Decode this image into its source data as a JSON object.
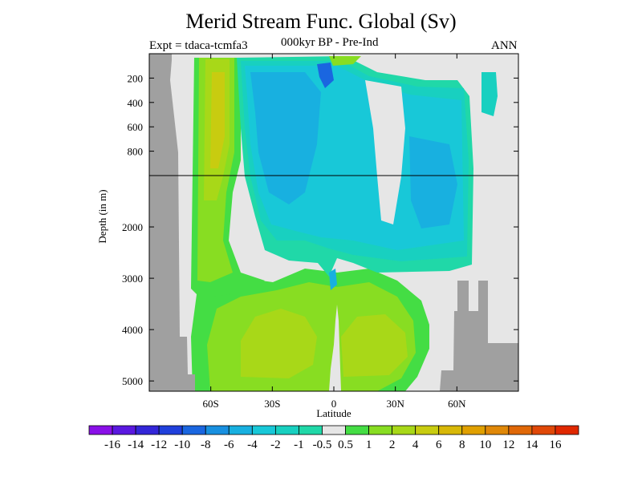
{
  "header": {
    "title": "Merid Stream Func. Global (Sv)",
    "left": "Expt = tdaca-tcmfa3",
    "center": "000kyr BP - Pre-Ind",
    "right": "ANN"
  },
  "chart_data": {
    "type": "heatmap",
    "title": "Merid Stream Func. Global (Sv)",
    "xlabel": "Latitude",
    "ylabel": "Depth (in m)",
    "xlim": [
      -90,
      90
    ],
    "x_ticks": [
      {
        "value": -60,
        "label": "60S"
      },
      {
        "value": -30,
        "label": "30S"
      },
      {
        "value": 0,
        "label": "0"
      },
      {
        "value": 30,
        "label": "30N"
      },
      {
        "value": 60,
        "label": "60N"
      }
    ],
    "y_ticks_upper": [
      {
        "value": 200,
        "label": "200"
      },
      {
        "value": 400,
        "label": "400"
      },
      {
        "value": 600,
        "label": "600"
      },
      {
        "value": 800,
        "label": "800"
      }
    ],
    "y_ticks_lower": [
      {
        "value": 2000,
        "label": "2000"
      },
      {
        "value": 3000,
        "label": "3000"
      },
      {
        "value": 4000,
        "label": "4000"
      },
      {
        "value": 5000,
        "label": "5000"
      }
    ],
    "colorbar": {
      "labels": [
        "-16",
        "-14",
        "-12",
        "-10",
        "-8",
        "-6",
        "-4",
        "-2",
        "-1",
        "-0.5",
        "0.5",
        "1",
        "2",
        "4",
        "6",
        "8",
        "10",
        "12",
        "14",
        "16"
      ],
      "colors": [
        "#8a10e8",
        "#5a18e0",
        "#3326d8",
        "#2040dc",
        "#1a66e0",
        "#1890e0",
        "#18b0e0",
        "#18c8d8",
        "#18d0c0",
        "#20d8a8",
        "#e6e6e6",
        "#44dd44",
        "#88dd22",
        "#a8d818",
        "#c8cc10",
        "#d8b808",
        "#e0a000",
        "#e08808",
        "#e06808",
        "#e04808",
        "#e02800"
      ]
    },
    "colors": {
      "land": "#a0a0a0",
      "background": "#e6e6e6",
      "atlantic_cell": "#18c8d8",
      "antarctic_cell": "#88dd22"
    }
  }
}
